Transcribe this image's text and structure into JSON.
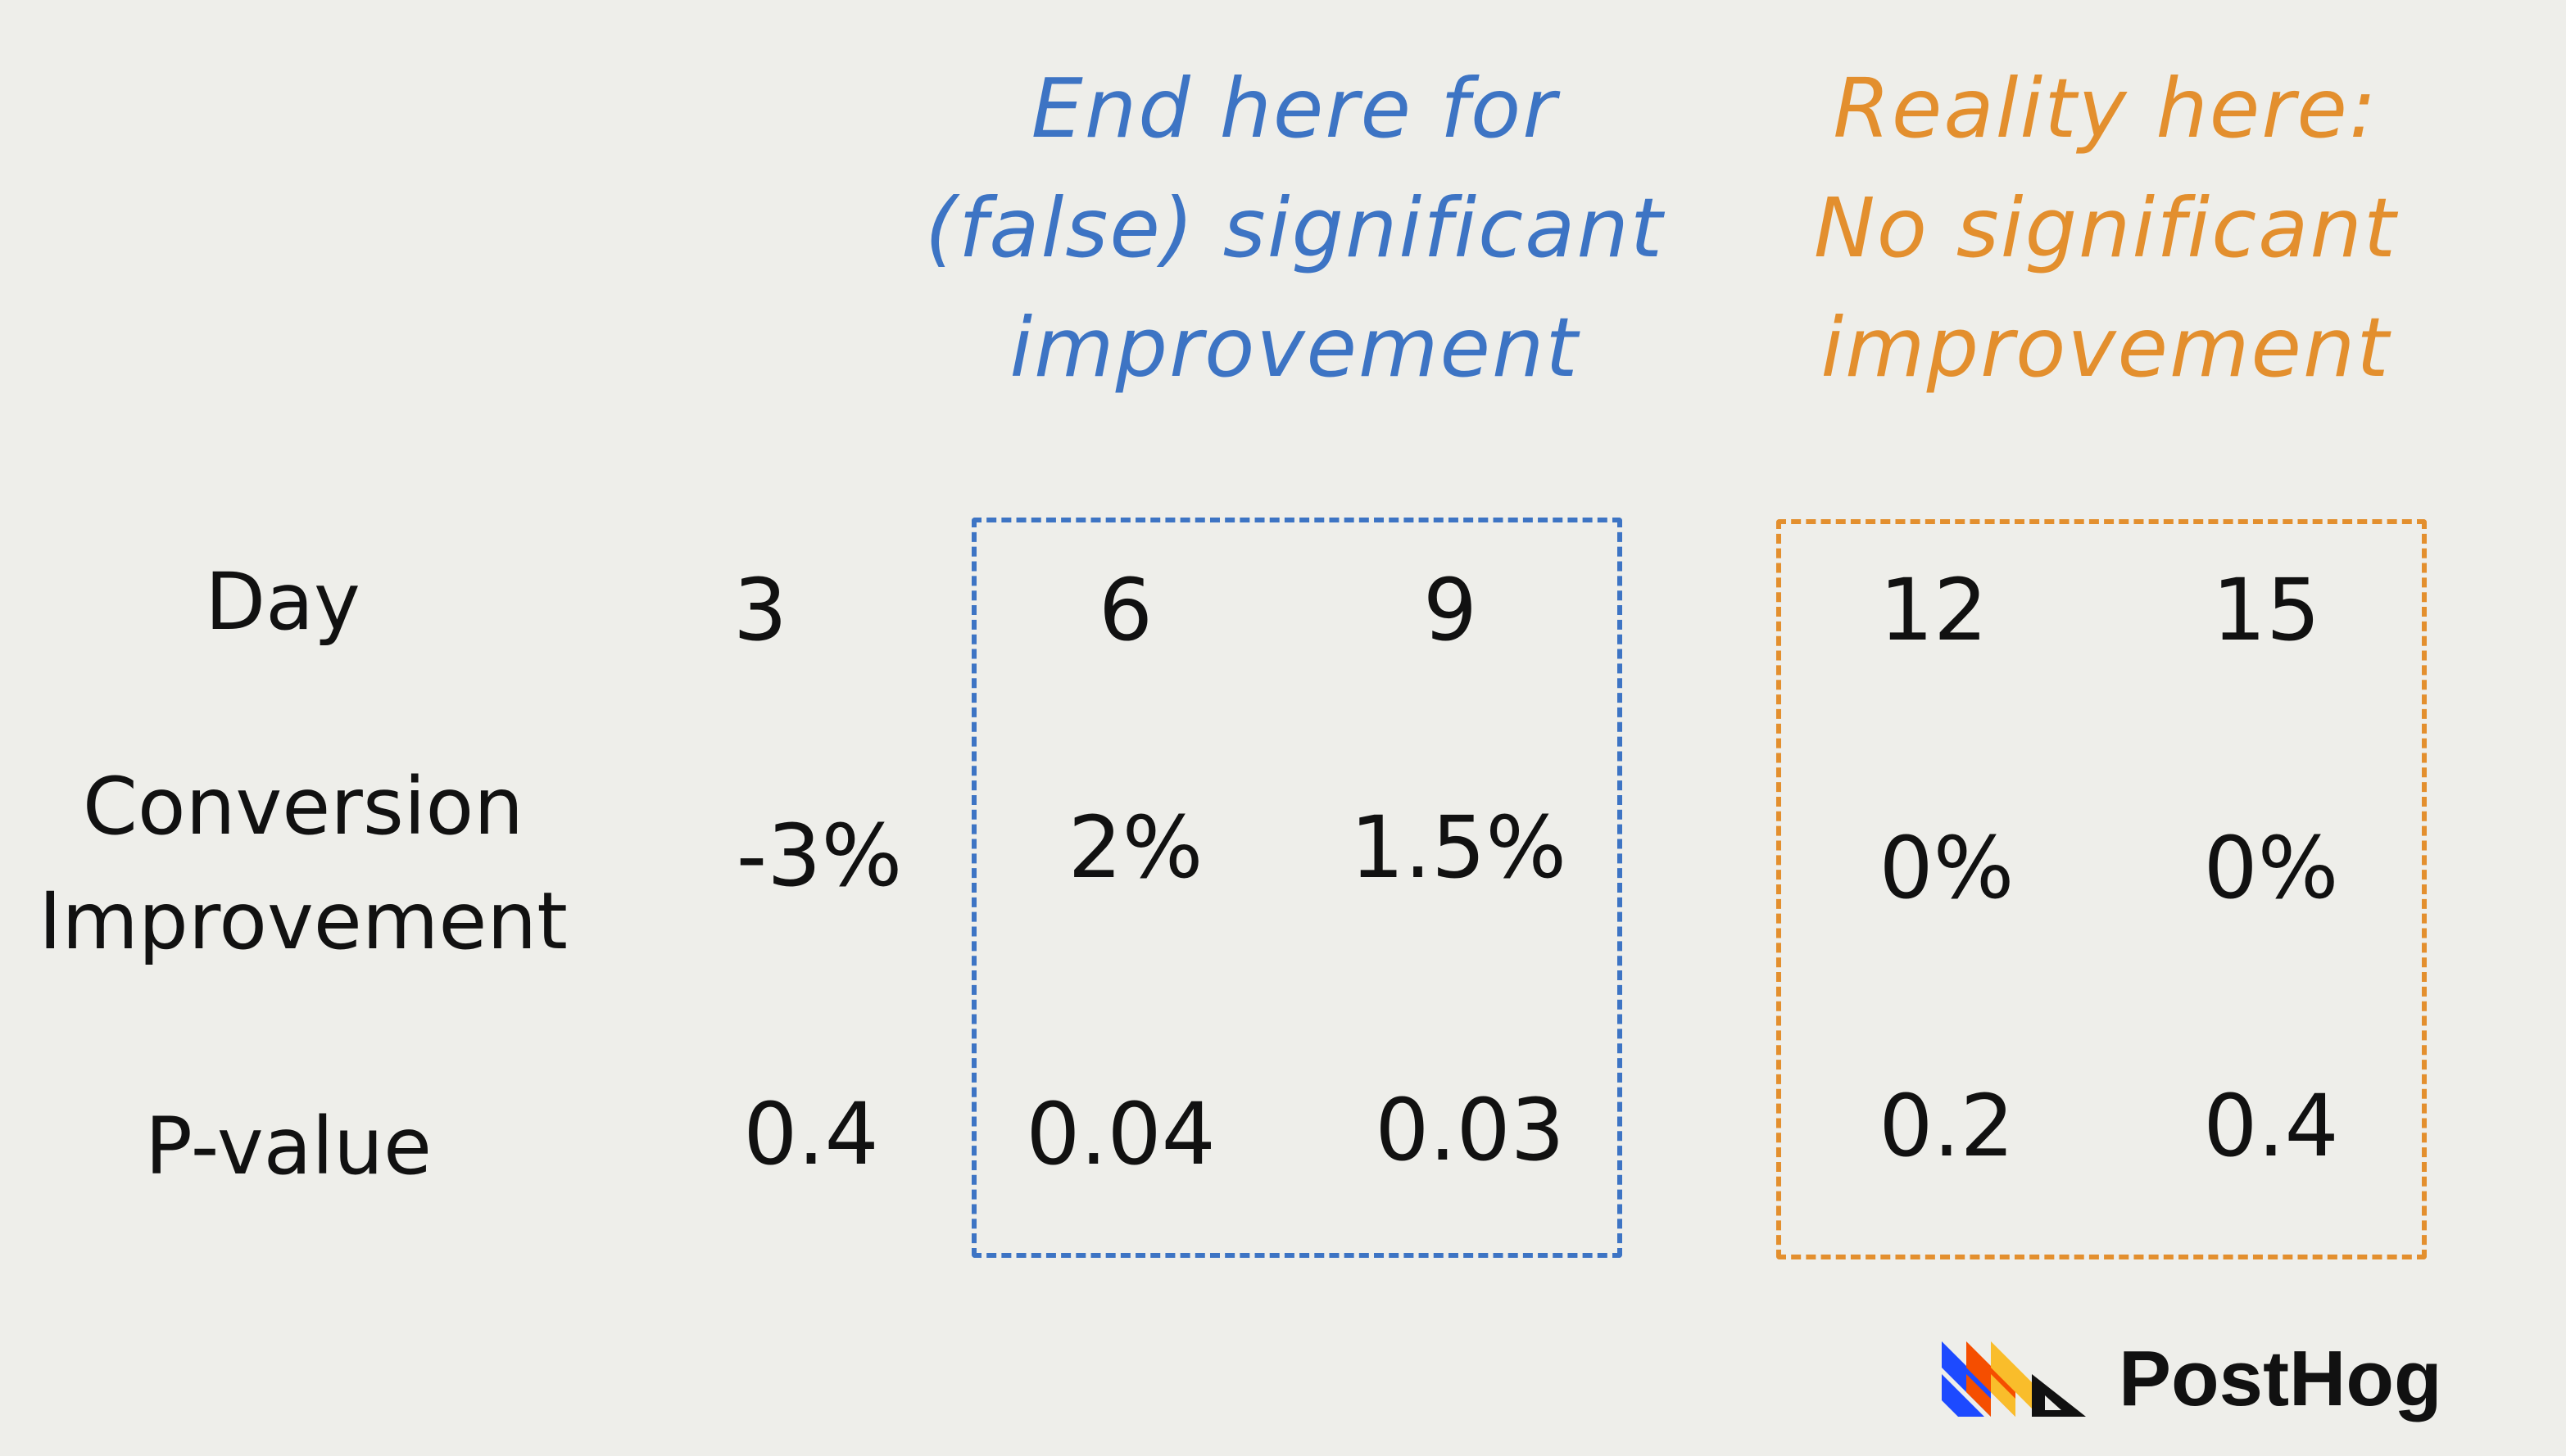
{
  "callouts": {
    "blue": {
      "lines": [
        "End here for",
        "(false) significant",
        "improvement"
      ],
      "color": "#3D74C4"
    },
    "orange": {
      "lines": [
        "Reality here:",
        "No significant",
        "improvement"
      ],
      "color": "#E38F2E"
    }
  },
  "table": {
    "row_labels": {
      "day": "Day",
      "conversion": [
        "Conversion",
        "Improvement"
      ],
      "pvalue": "P-value"
    },
    "columns": [
      {
        "day": "3",
        "conversion": "-3%",
        "pvalue": "0.4"
      },
      {
        "day": "6",
        "conversion": "2%",
        "pvalue": "0.04"
      },
      {
        "day": "9",
        "conversion": "1.5%",
        "pvalue": "0.03"
      },
      {
        "day": "12",
        "conversion": "0%",
        "pvalue": "0.2"
      },
      {
        "day": "15",
        "conversion": "0%",
        "pvalue": "0.4"
      }
    ]
  },
  "brand": {
    "name": "PostHog",
    "logo_icon": "posthog-hedgehog-logo",
    "logo_colors": [
      "#1D4AFF",
      "#F54E00",
      "#F9BD2B",
      "#000000"
    ]
  },
  "colors": {
    "background": "#EEEEEA",
    "text": "#111111",
    "highlight_blue": "#3D74C4",
    "highlight_orange": "#E38F2E"
  }
}
